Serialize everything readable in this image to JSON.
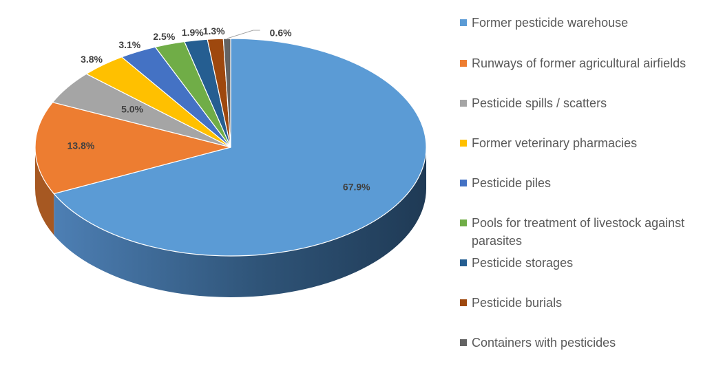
{
  "chart_data": {
    "type": "pie",
    "title": "",
    "categories": [
      "Former pesticide warehouse",
      "Runways of former agricultural airfields",
      "Pesticide spills / scatters",
      "Former veterinary pharmacies",
      "Pesticide piles",
      "Pools for treatment of livestock against parasites",
      "Pesticide storages",
      "Pesticide burials",
      "Containers with pesticides"
    ],
    "values": [
      67.9,
      13.8,
      5.0,
      3.8,
      3.1,
      2.5,
      1.9,
      1.3,
      0.6
    ],
    "data_labels": [
      "67.9%",
      "13.8%",
      "5.0%",
      "3.8%",
      "3.1%",
      "2.5%",
      "1.9%",
      "1.3%",
      "0.6%"
    ],
    "colors": [
      "#5b9bd5",
      "#ed7d31",
      "#a5a5a5",
      "#ffc000",
      "#4472c4",
      "#70ad47",
      "#255e91",
      "#9e480e",
      "#636363"
    ],
    "style": "3d-pie",
    "legend_position": "right"
  }
}
